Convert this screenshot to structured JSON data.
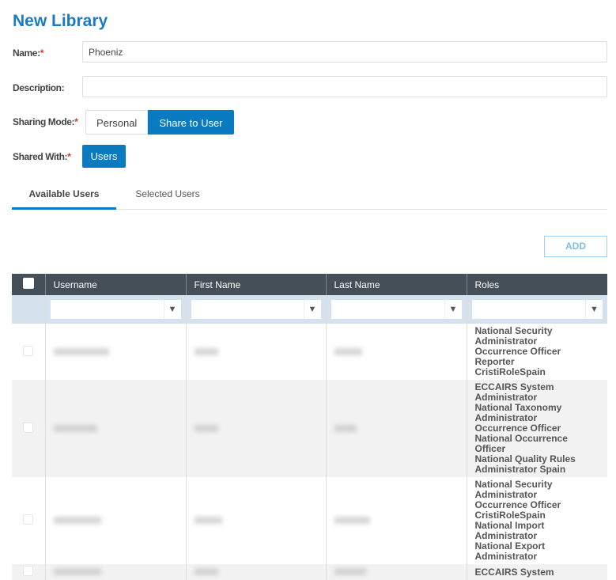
{
  "title": "New Library",
  "form": {
    "name_label": "Name:",
    "name_value": "Phoeniz",
    "description_label": "Description:",
    "description_value": "",
    "sharing_mode_label": "Sharing Mode:",
    "sharing_options": [
      "Personal",
      "Share to User"
    ],
    "sharing_selected": "Share to User",
    "shared_with_label": "Shared With:",
    "users_button": "Users",
    "required_mark": "*"
  },
  "tabs": [
    {
      "label": "Available Users",
      "active": true
    },
    {
      "label": "Selected Users",
      "active": false
    }
  ],
  "add_button": "ADD",
  "table": {
    "columns": [
      "Username",
      "First Name",
      "Last Name",
      "Roles"
    ],
    "filter_icon": "funnel-icon",
    "rows": [
      {
        "roles": [
          "National Security Administrator",
          "Occurrence Officer",
          "Reporter",
          "CristiRoleSpain"
        ]
      },
      {
        "roles": [
          "ECCAIRS System Administrator",
          "National Taxonomy Administrator",
          "Occurrence Officer",
          "National Occurrence Officer",
          "National Quality Rules Administrator Spain"
        ]
      },
      {
        "roles": [
          "National Security Administrator",
          "Occurrence Officer",
          "CristiRoleSpain",
          "National Import Administrator",
          "National Export Administrator"
        ]
      },
      {
        "roles": [
          "ECCAIRS System"
        ]
      }
    ]
  },
  "colors": {
    "accent": "#0a7bc1",
    "header_bg": "#444f57",
    "filter_bg": "#d5e2ee",
    "required": "#d9342b"
  }
}
